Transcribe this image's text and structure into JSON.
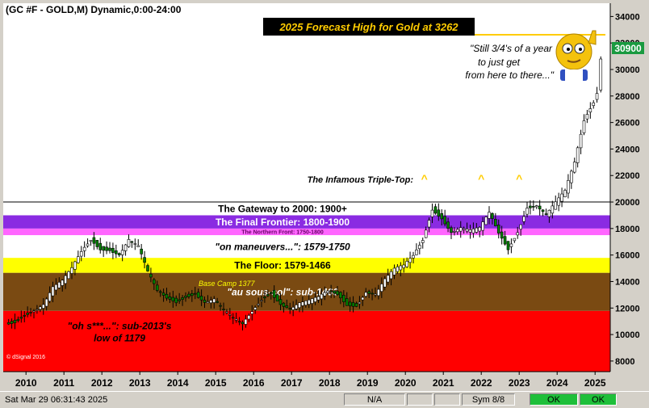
{
  "chart_title": "(GC #F - GOLD,M) Dynamic,0:00-24:00",
  "current_price_label": "30900",
  "forecast": {
    "label": "2025 Forecast High for Gold at 3262",
    "value": 32620
  },
  "speech_bubble": [
    "\"Still 3/4's of a year",
    "to just get",
    "from here to there...\""
  ],
  "triple_top": {
    "label": "The Infamous Triple-Top:",
    "markers": [
      {
        "symbol": "^",
        "x": 2020.5
      },
      {
        "symbol": "^",
        "x": 2022.0
      },
      {
        "symbol": "^",
        "x": 2023.0
      }
    ]
  },
  "copyright": "© dSignal 2016",
  "status": {
    "datetime": "Sat Mar 29 06:31:43 2025",
    "na": "N/A",
    "sym": "Sym 8/8",
    "ok1": "OK",
    "ok2": "OK"
  },
  "colors": {
    "frame_bg": "#d4d0c8",
    "plot_bg": "#ffffff",
    "gateway_line": "#000000",
    "final_frontier": "#8a2be2",
    "northern_front": "#ff66ff",
    "floor": "#ffff00",
    "sous_sol": "#7a4a12",
    "basement": "#ff0000",
    "candle": "#008000",
    "forecast_line": "#ffcc00",
    "forecast_label_bg": "#000000",
    "forecast_label_text": "#ffcc00",
    "price_tag_bg": "#1a9a40"
  },
  "chart_data": {
    "type": "candlestick",
    "x_ticks": [
      "2010",
      "2011",
      "2012",
      "2013",
      "2014",
      "2015",
      "2016",
      "2017",
      "2018",
      "2019",
      "2020",
      "2021",
      "2022",
      "2023",
      "2024",
      "2025"
    ],
    "y_ticks": [
      "8000",
      "10000",
      "12000",
      "14000",
      "16000",
      "18000",
      "20000",
      "22000",
      "24000",
      "26000",
      "28000",
      "30000",
      "32000",
      "34000"
    ],
    "ylim": [
      7200,
      35000
    ],
    "xlim": [
      2009.4,
      2025.4
    ],
    "zones": [
      {
        "name": "basement",
        "label": "\"oh s***...\":  sub-2013's\nlow of 1179",
        "from": 7200,
        "to": 11790
      },
      {
        "name": "sous_sol",
        "label": "\"au sous-sol\":  sub-1466",
        "from": 11790,
        "to": 14660
      },
      {
        "name": "floor",
        "label": "The Floor:  1579-1466",
        "from": 14660,
        "to": 15790
      },
      {
        "name": "maneuvers",
        "label": "\"on maneuvers...\":  1579-1750",
        "from": 15790,
        "to": 17500
      },
      {
        "name": "northern_front",
        "label": "The Northern Front:  1750-1800",
        "from": 17500,
        "to": 18000
      },
      {
        "name": "final_frontier",
        "label": "The Final Frontier:  1800-1900",
        "from": 18000,
        "to": 19000
      },
      {
        "name": "gateway",
        "label": "The Gateway to 2000:  1900+",
        "from": 19000,
        "to": 20000
      }
    ],
    "annotations": [
      {
        "text": "Base Camp 1377",
        "x": 2014.6,
        "y": 13770
      }
    ],
    "series": [
      {
        "name": "",
        "points": [
          [
            2009.5,
            10800
          ],
          [
            2009.75,
            11000
          ],
          [
            2010.0,
            11500
          ],
          [
            2010.25,
            11800
          ],
          [
            2010.5,
            12200
          ],
          [
            2010.75,
            13500
          ],
          [
            2011.0,
            14000
          ],
          [
            2011.25,
            15000
          ],
          [
            2011.5,
            16300
          ],
          [
            2011.75,
            17200
          ],
          [
            2012.0,
            16500
          ],
          [
            2012.25,
            16400
          ],
          [
            2012.5,
            16000
          ],
          [
            2012.75,
            17100
          ],
          [
            2013.0,
            16600
          ],
          [
            2013.25,
            14700
          ],
          [
            2013.5,
            13300
          ],
          [
            2013.75,
            12800
          ],
          [
            2014.0,
            12500
          ],
          [
            2014.25,
            12900
          ],
          [
            2014.5,
            13100
          ],
          [
            2014.75,
            12400
          ],
          [
            2015.0,
            12600
          ],
          [
            2015.25,
            11800
          ],
          [
            2015.5,
            11200
          ],
          [
            2015.75,
            10800
          ],
          [
            2016.0,
            11800
          ],
          [
            2016.25,
            12700
          ],
          [
            2016.5,
            13200
          ],
          [
            2016.75,
            12300
          ],
          [
            2017.0,
            11900
          ],
          [
            2017.25,
            12300
          ],
          [
            2017.5,
            12500
          ],
          [
            2017.75,
            12800
          ],
          [
            2018.0,
            13300
          ],
          [
            2018.25,
            13100
          ],
          [
            2018.5,
            12300
          ],
          [
            2018.75,
            12200
          ],
          [
            2019.0,
            13200
          ],
          [
            2019.25,
            13000
          ],
          [
            2019.5,
            14100
          ],
          [
            2019.75,
            14900
          ],
          [
            2020.0,
            15200
          ],
          [
            2020.25,
            16000
          ],
          [
            2020.5,
            17200
          ],
          [
            2020.75,
            19500
          ],
          [
            2021.0,
            18800
          ],
          [
            2021.25,
            17700
          ],
          [
            2021.5,
            18000
          ],
          [
            2021.75,
            17800
          ],
          [
            2022.0,
            18000
          ],
          [
            2022.25,
            19200
          ],
          [
            2022.5,
            17700
          ],
          [
            2022.75,
            16500
          ],
          [
            2023.0,
            17800
          ],
          [
            2023.25,
            19600
          ],
          [
            2023.5,
            19700
          ],
          [
            2023.75,
            19000
          ],
          [
            2024.0,
            19900
          ],
          [
            2024.25,
            20800
          ],
          [
            2024.5,
            23000
          ],
          [
            2024.75,
            26200
          ],
          [
            2025.0,
            27600
          ],
          [
            2025.1,
            28300
          ],
          [
            2025.2,
            30900
          ]
        ]
      }
    ]
  }
}
